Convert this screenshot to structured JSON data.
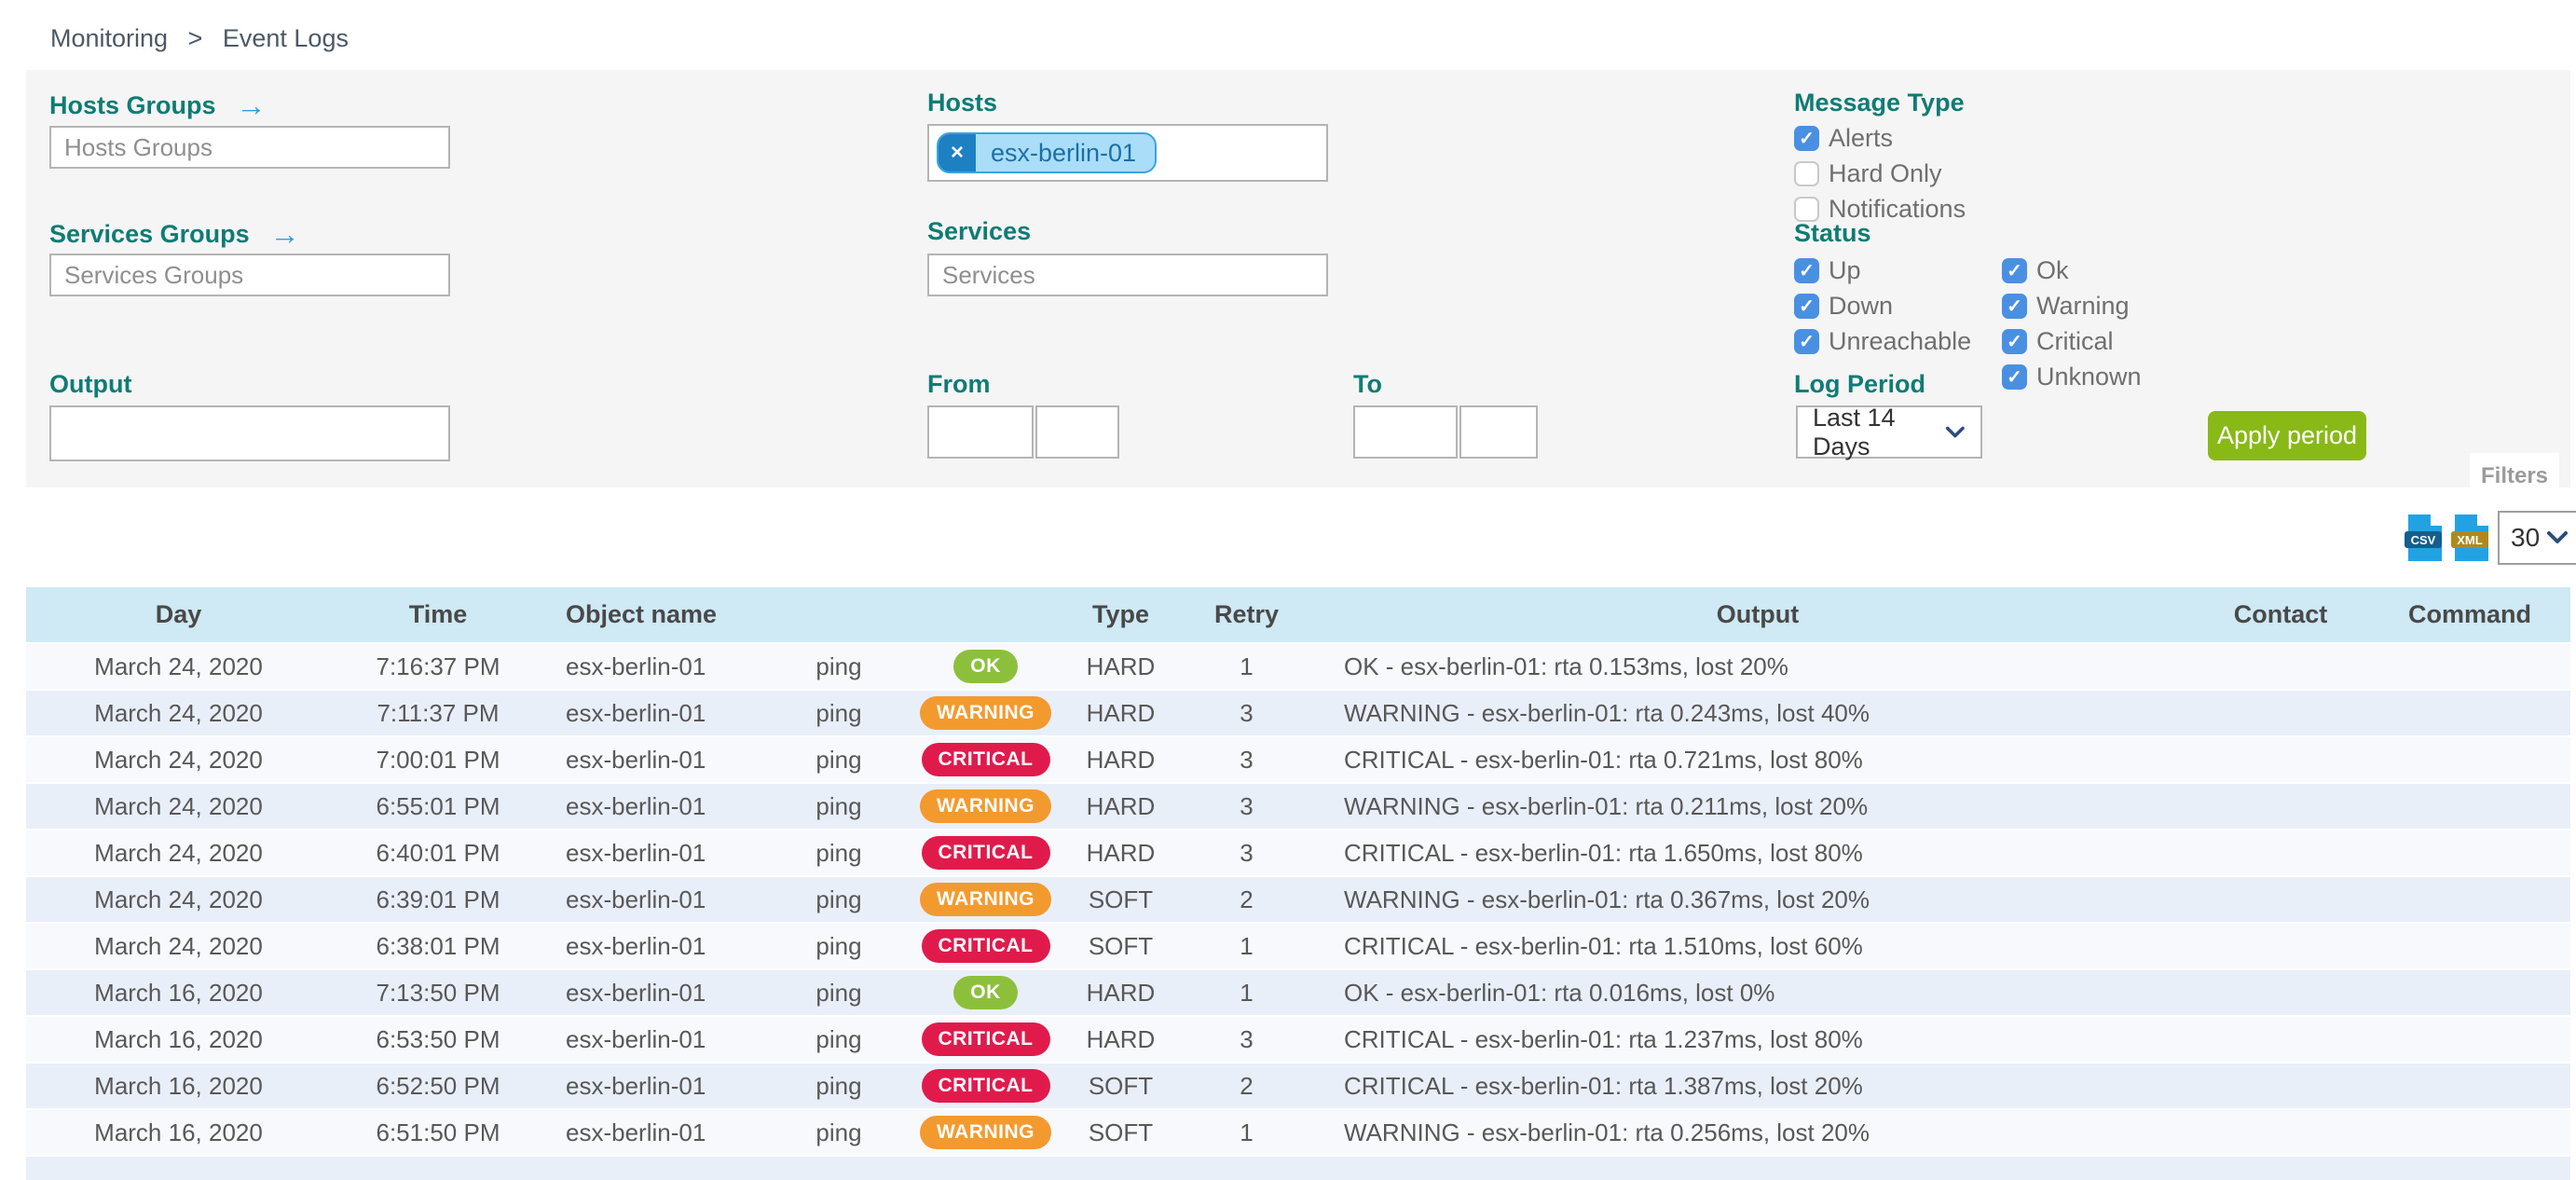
{
  "breadcrumb": {
    "section": "Monitoring",
    "separator": ">",
    "page": "Event Logs"
  },
  "filters": {
    "hosts_groups": {
      "label": "Hosts Groups",
      "placeholder": "Hosts Groups"
    },
    "services_groups": {
      "label": "Services Groups",
      "placeholder": "Services Groups"
    },
    "hosts": {
      "label": "Hosts",
      "chips": [
        "esx-berlin-01"
      ],
      "remove_glyph": "×"
    },
    "services": {
      "label": "Services",
      "placeholder": "Services"
    },
    "output": {
      "label": "Output"
    },
    "from": {
      "label": "From"
    },
    "to": {
      "label": "To"
    },
    "message_type": {
      "label": "Message Type",
      "options": [
        {
          "label": "Alerts",
          "checked": true
        },
        {
          "label": "Hard Only",
          "checked": false
        },
        {
          "label": "Notifications",
          "checked": false
        }
      ]
    },
    "status": {
      "label": "Status",
      "col1": [
        {
          "label": "Up",
          "checked": true
        },
        {
          "label": "Down",
          "checked": true
        },
        {
          "label": "Unreachable",
          "checked": true
        }
      ],
      "col2": [
        {
          "label": "Ok",
          "checked": true
        },
        {
          "label": "Warning",
          "checked": true
        },
        {
          "label": "Critical",
          "checked": true
        },
        {
          "label": "Unknown",
          "checked": true
        }
      ]
    },
    "log_period": {
      "label": "Log Period",
      "value": "Last 14 Days"
    },
    "apply_button": "Apply period",
    "filters_tab": "Filters",
    "arrow_glyph": "→"
  },
  "toolbar": {
    "csv_label": "CSV",
    "xml_label": "XML",
    "page_size_value": "30"
  },
  "table": {
    "columns": [
      "Day",
      "Time",
      "Object name",
      "",
      "",
      "Type",
      "Retry",
      "Output",
      "Contact",
      "Command"
    ],
    "rows": [
      {
        "day": "March 24, 2020",
        "time": "7:16:37 PM",
        "object": "esx-berlin-01",
        "service": "ping",
        "status": "OK",
        "type": "HARD",
        "retry": "1",
        "output": "OK - esx-berlin-01: rta 0.153ms, lost 20%",
        "contact": "",
        "command": ""
      },
      {
        "day": "March 24, 2020",
        "time": "7:11:37 PM",
        "object": "esx-berlin-01",
        "service": "ping",
        "status": "WARNING",
        "type": "HARD",
        "retry": "3",
        "output": "WARNING - esx-berlin-01: rta 0.243ms, lost 40%",
        "contact": "",
        "command": ""
      },
      {
        "day": "March 24, 2020",
        "time": "7:00:01 PM",
        "object": "esx-berlin-01",
        "service": "ping",
        "status": "CRITICAL",
        "type": "HARD",
        "retry": "3",
        "output": "CRITICAL - esx-berlin-01: rta 0.721ms, lost 80%",
        "contact": "",
        "command": ""
      },
      {
        "day": "March 24, 2020",
        "time": "6:55:01 PM",
        "object": "esx-berlin-01",
        "service": "ping",
        "status": "WARNING",
        "type": "HARD",
        "retry": "3",
        "output": "WARNING - esx-berlin-01: rta 0.211ms, lost 20%",
        "contact": "",
        "command": ""
      },
      {
        "day": "March 24, 2020",
        "time": "6:40:01 PM",
        "object": "esx-berlin-01",
        "service": "ping",
        "status": "CRITICAL",
        "type": "HARD",
        "retry": "3",
        "output": "CRITICAL - esx-berlin-01: rta 1.650ms, lost 80%",
        "contact": "",
        "command": ""
      },
      {
        "day": "March 24, 2020",
        "time": "6:39:01 PM",
        "object": "esx-berlin-01",
        "service": "ping",
        "status": "WARNING",
        "type": "SOFT",
        "retry": "2",
        "output": "WARNING - esx-berlin-01: rta 0.367ms, lost 20%",
        "contact": "",
        "command": ""
      },
      {
        "day": "March 24, 2020",
        "time": "6:38:01 PM",
        "object": "esx-berlin-01",
        "service": "ping",
        "status": "CRITICAL",
        "type": "SOFT",
        "retry": "1",
        "output": "CRITICAL - esx-berlin-01: rta 1.510ms, lost 60%",
        "contact": "",
        "command": ""
      },
      {
        "day": "March 16, 2020",
        "time": "7:13:50 PM",
        "object": "esx-berlin-01",
        "service": "ping",
        "status": "OK",
        "type": "HARD",
        "retry": "1",
        "output": "OK - esx-berlin-01: rta 0.016ms, lost 0%",
        "contact": "",
        "command": ""
      },
      {
        "day": "March 16, 2020",
        "time": "6:53:50 PM",
        "object": "esx-berlin-01",
        "service": "ping",
        "status": "CRITICAL",
        "type": "HARD",
        "retry": "3",
        "output": "CRITICAL - esx-berlin-01: rta 1.237ms, lost 80%",
        "contact": "",
        "command": ""
      },
      {
        "day": "March 16, 2020",
        "time": "6:52:50 PM",
        "object": "esx-berlin-01",
        "service": "ping",
        "status": "CRITICAL",
        "type": "SOFT",
        "retry": "2",
        "output": "CRITICAL - esx-berlin-01: rta 1.387ms, lost 20%",
        "contact": "",
        "command": ""
      },
      {
        "day": "March 16, 2020",
        "time": "6:51:50 PM",
        "object": "esx-berlin-01",
        "service": "ping",
        "status": "WARNING",
        "type": "SOFT",
        "retry": "1",
        "output": "WARNING - esx-berlin-01: rta 0.256ms, lost 20%",
        "contact": "",
        "command": ""
      }
    ]
  },
  "colors": {
    "accent_teal": "#0f7c74",
    "checkbox_blue": "#4a90e2",
    "apply_green": "#88b917",
    "header_bg": "#cfe9f5",
    "badges": {
      "OK": "#8cc03c",
      "WARNING": "#f39a2f",
      "CRITICAL": "#e01b4c"
    },
    "csv_banner": "#145f8c",
    "xml_banner": "#ad8a1d",
    "file_blue": "#22a2e2"
  }
}
